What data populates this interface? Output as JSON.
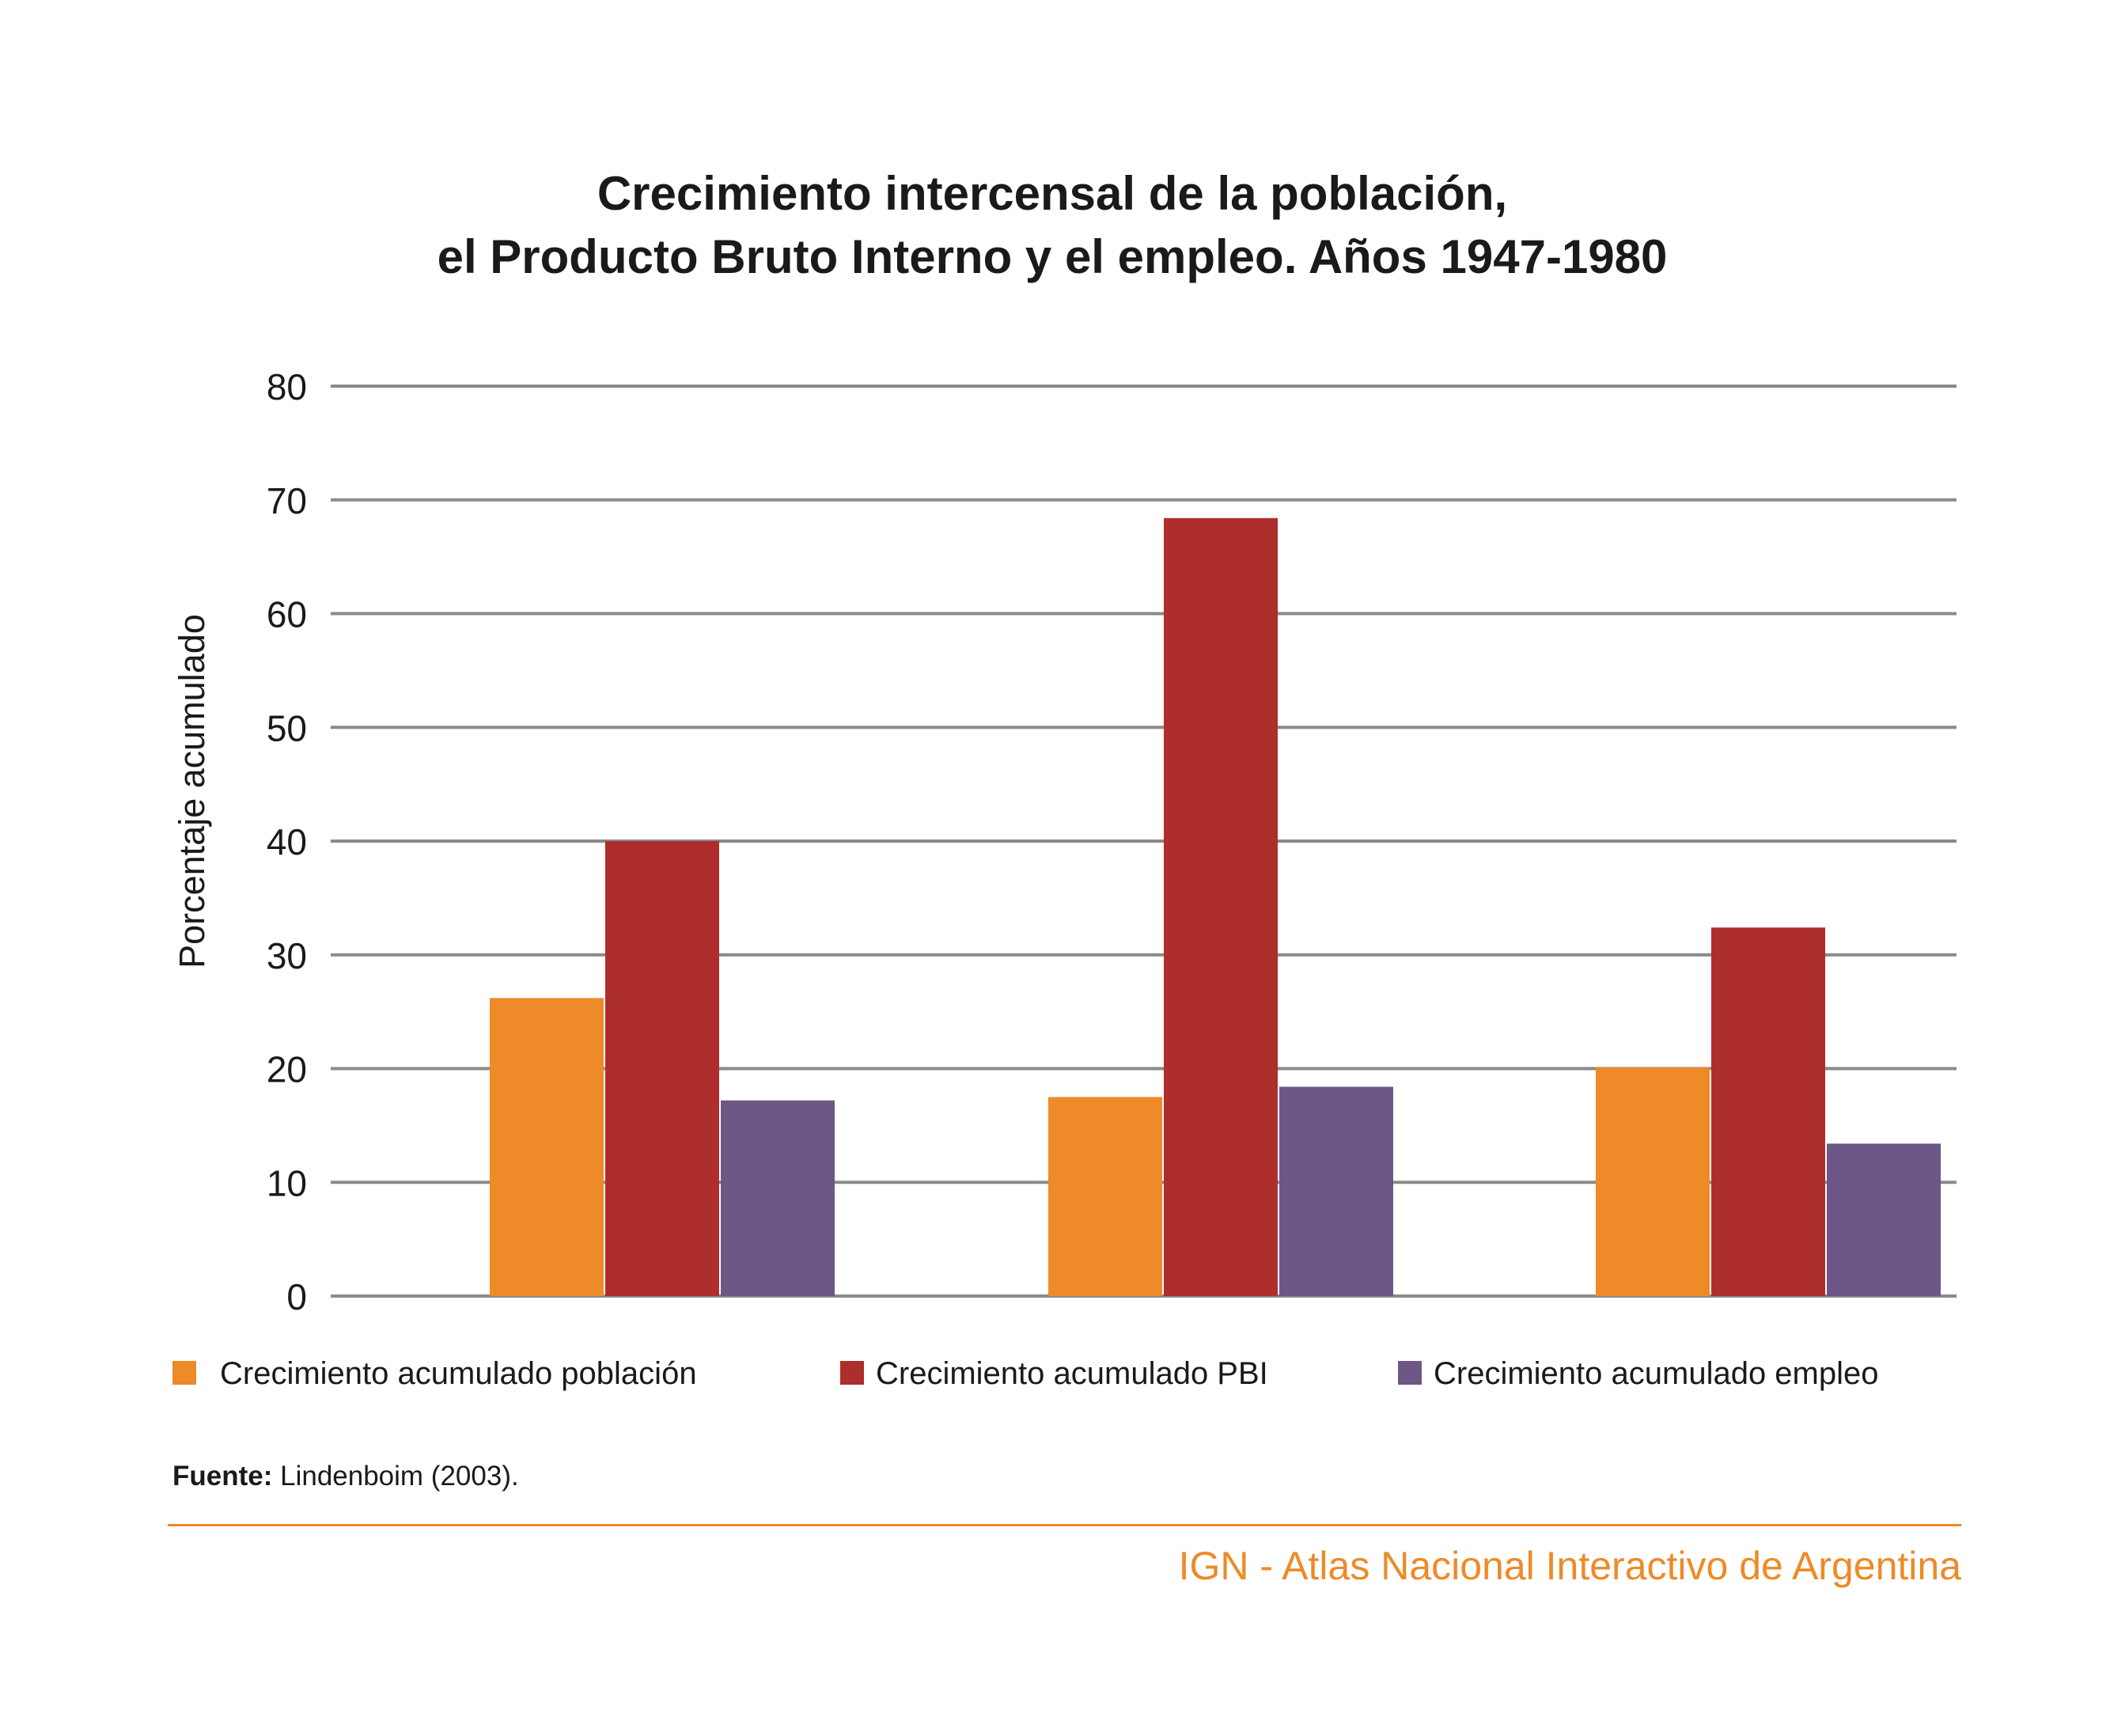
{
  "chart_data": {
    "type": "bar",
    "title_lines": [
      "Crecimiento intercensal de la población,",
      "el Producto Bruto Interno y el empleo. Años 1947-1980"
    ],
    "ylabel": "Porcentaje acumulado",
    "ylim": [
      0,
      80
    ],
    "yticks": [
      0,
      10,
      20,
      30,
      40,
      50,
      60,
      70,
      80
    ],
    "grid": true,
    "legend_position": "bottom",
    "categories": [
      "",
      "",
      ""
    ],
    "series": [
      {
        "name": "Crecimiento acumulado población",
        "color": "#ee8a28",
        "values": [
          26.2,
          17.5,
          20.1
        ]
      },
      {
        "name": "Crecimiento acumulado PBI",
        "color": "#ae2e2b",
        "values": [
          40.0,
          68.4,
          32.4
        ]
      },
      {
        "name": "Crecimiento acumulado empleo",
        "color": "#6c5786",
        "values": [
          17.2,
          18.4,
          13.4
        ]
      }
    ]
  },
  "footer": {
    "source_label": "Fuente:",
    "source_text": " Lindenboim (2003).",
    "credit": "IGN - Atlas Nacional Interactivo de Argentina"
  }
}
